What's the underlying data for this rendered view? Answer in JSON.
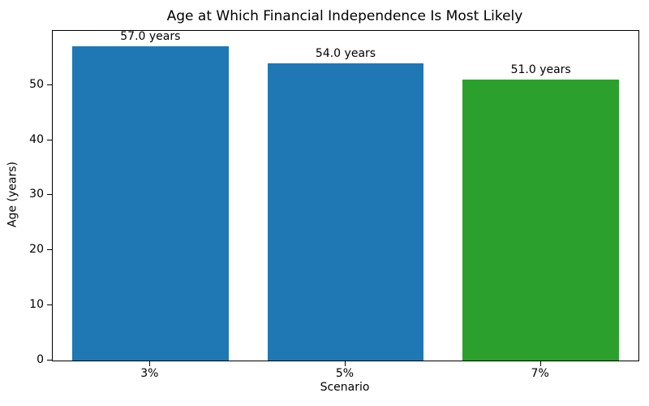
{
  "chart_data": {
    "type": "bar",
    "title": "Age at Which Financial Independence Is Most Likely",
    "xlabel": "Scenario",
    "ylabel": "Age (years)",
    "categories": [
      "3%",
      "5%",
      "7%"
    ],
    "values": [
      57.0,
      54.0,
      51.0
    ],
    "bar_labels": [
      "57.0 years",
      "54.0 years",
      "51.0 years"
    ],
    "bar_colors": [
      "#1f77b4",
      "#1f77b4",
      "#2ca02c"
    ],
    "ylim": [
      0,
      59.85
    ],
    "yticks": [
      0,
      10,
      20,
      30,
      40,
      50
    ],
    "grid": false,
    "spine_color": "#000000",
    "background_color": "#ffffff"
  }
}
